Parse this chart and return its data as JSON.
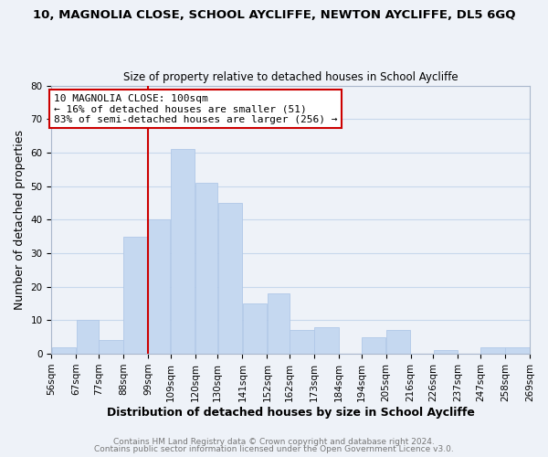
{
  "title": "10, MAGNOLIA CLOSE, SCHOOL AYCLIFFE, NEWTON AYCLIFFE, DL5 6GQ",
  "subtitle": "Size of property relative to detached houses in School Aycliffe",
  "xlabel": "Distribution of detached houses by size in School Aycliffe",
  "ylabel": "Number of detached properties",
  "bar_color": "#c5d8f0",
  "bar_edge_color": "#b0c8e8",
  "grid_color": "#c8d8ec",
  "background_color": "#eef2f8",
  "vline_x": 99,
  "vline_color": "#cc0000",
  "bin_edges": [
    56,
    67,
    77,
    88,
    99,
    109,
    120,
    130,
    141,
    152,
    162,
    173,
    184,
    194,
    205,
    216,
    226,
    237,
    247,
    258,
    269
  ],
  "bar_heights": [
    2,
    10,
    4,
    35,
    40,
    61,
    51,
    45,
    15,
    18,
    7,
    8,
    0,
    5,
    7,
    0,
    1,
    0,
    2,
    2
  ],
  "ylim": [
    0,
    80
  ],
  "annot_line1": "10 MAGNOLIA CLOSE: 100sqm",
  "annot_line2": "← 16% of detached houses are smaller (51)",
  "annot_line3": "83% of semi-detached houses are larger (256) →",
  "footer1": "Contains HM Land Registry data © Crown copyright and database right 2024.",
  "footer2": "Contains public sector information licensed under the Open Government Licence v3.0.",
  "title_fontsize": 9.5,
  "subtitle_fontsize": 8.5,
  "xlabel_fontsize": 9,
  "ylabel_fontsize": 9,
  "tick_fontsize": 7.5,
  "annot_fontsize": 8,
  "footer_fontsize": 6.5
}
